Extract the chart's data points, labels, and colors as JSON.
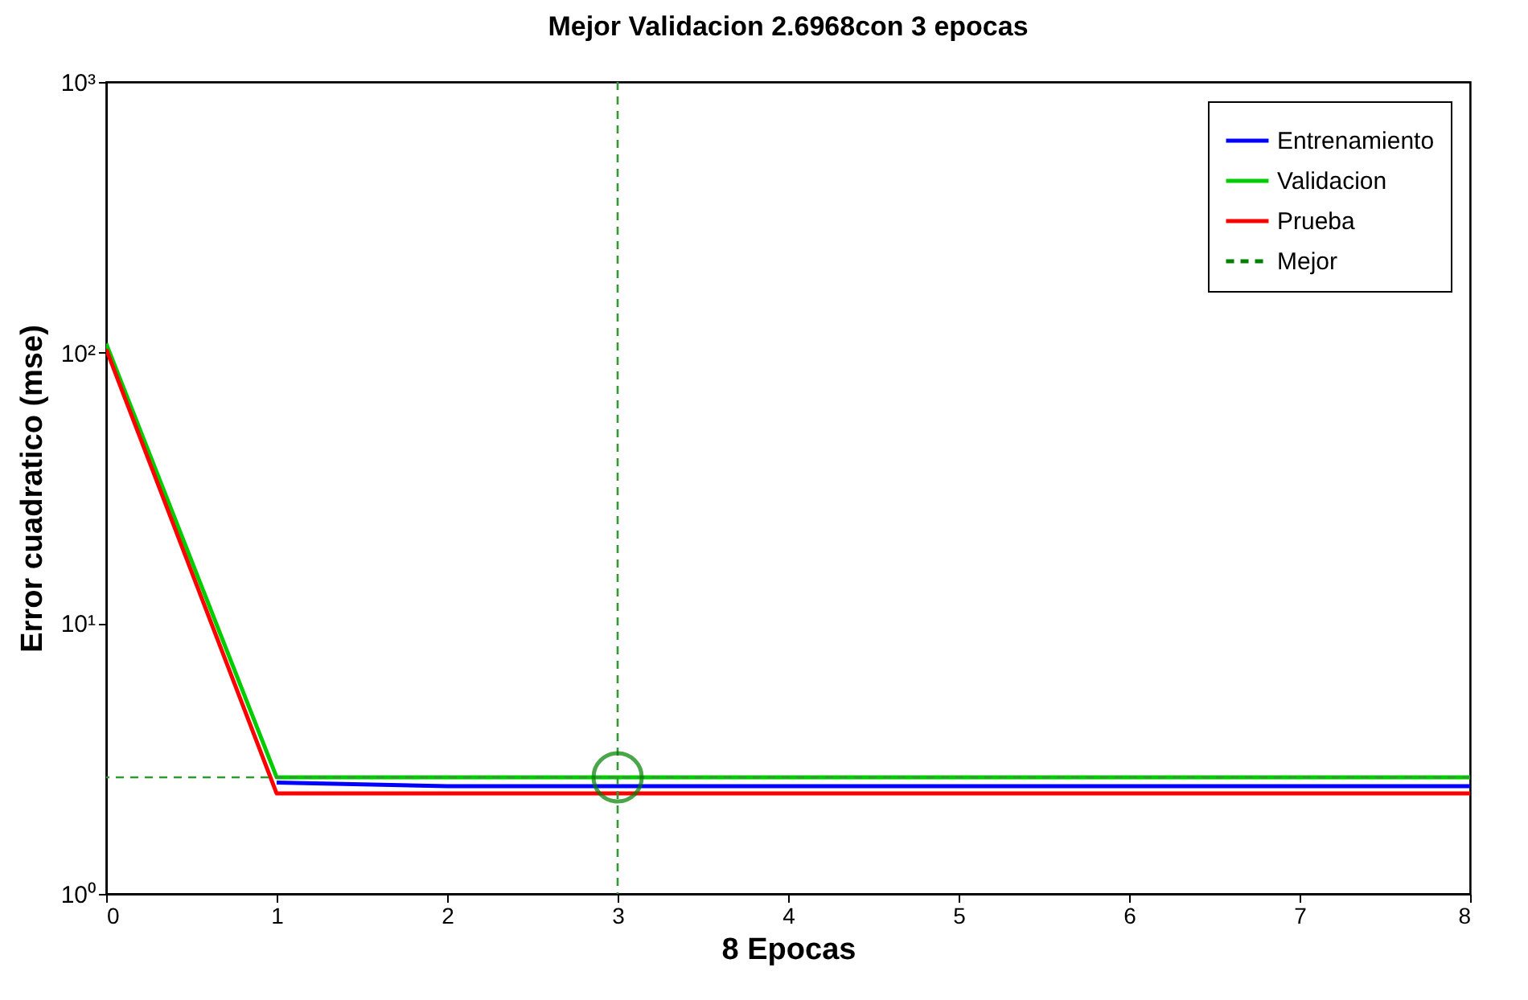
{
  "chart_data": {
    "type": "line",
    "title": "Mejor Validacion 2.6968con 3 epocas",
    "xlabel": "8 Epocas",
    "ylabel": "Error cuadratico  (mse)",
    "x": [
      0,
      1,
      2,
      3,
      4,
      5,
      6,
      7,
      8
    ],
    "series": [
      {
        "name": "Entrenamiento",
        "color": "#0000ff",
        "values": [
          null,
          2.58,
          2.5,
          2.5,
          2.5,
          2.5,
          2.5,
          2.5,
          2.5
        ]
      },
      {
        "name": "Validacion",
        "color": "#00cc00",
        "values": [
          108,
          2.6968,
          2.6968,
          2.6968,
          2.6968,
          2.6968,
          2.6968,
          2.6968,
          2.6968
        ]
      },
      {
        "name": "Prueba",
        "color": "#ff0000",
        "values": [
          103,
          2.35,
          2.35,
          2.35,
          2.35,
          2.35,
          2.35,
          2.35,
          2.35
        ]
      },
      {
        "name": "Mejor",
        "type": "scatter",
        "color": "#008000",
        "x": [
          3
        ],
        "values": [
          2.6968
        ],
        "marker": "circle",
        "line_style": "dashed"
      }
    ],
    "ref_lines": [
      {
        "axis": "x",
        "value": 3,
        "color": "#339933",
        "line_style": "dashed"
      },
      {
        "axis": "y",
        "value": 2.6968,
        "color": "#339933",
        "line_style": "dashed"
      }
    ],
    "log": "y",
    "xlim": [
      0,
      8
    ],
    "ylim": [
      1,
      1000
    ],
    "xticks": [
      0,
      1,
      2,
      3,
      4,
      5,
      6,
      7,
      8
    ],
    "yticks": [
      {
        "value": 1,
        "label": "10⁰"
      },
      {
        "value": 10,
        "label": "10¹"
      },
      {
        "value": 100,
        "label": "10²"
      },
      {
        "value": 1000,
        "label": "10³"
      }
    ],
    "grid": false,
    "legend": "top right",
    "line_style": "solid"
  }
}
